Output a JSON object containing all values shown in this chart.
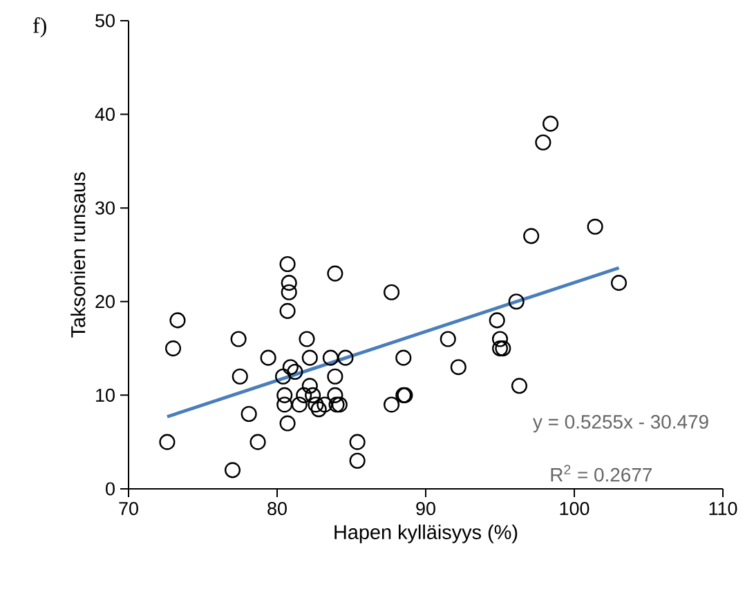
{
  "chart_data": {
    "type": "scatter",
    "xlabel": "Hapen kylläisyys (%)",
    "ylabel": "Taksonien runsaus",
    "xlim": [
      70,
      110
    ],
    "xticks": [
      70,
      80,
      90,
      100,
      110
    ],
    "ylim": [
      0,
      50
    ],
    "yticks": [
      0,
      10,
      20,
      30,
      40,
      50
    ],
    "annotations": [
      "f)",
      "y = 0.5255x - 30.479",
      "R$^{2}$ = 0.2677"
    ],
    "series": [
      {
        "marker": "circle",
        "color": "#000000",
        "x": [
          72.6,
          73,
          73.3,
          77,
          77.4,
          77.5,
          78.1,
          78.7,
          79.4,
          80.4,
          80.5,
          80.5,
          80.7,
          80.7,
          80.8,
          80.8,
          80.7,
          80.9,
          81.2,
          81.5,
          81.8,
          82,
          82.2,
          82.2,
          82.4,
          82.6,
          82.8,
          83.2,
          83.6,
          83.9,
          83.9,
          83.9,
          84,
          84.2,
          84.6,
          85.4,
          85.4,
          87.7,
          87.7,
          88.5,
          88.5,
          88.6,
          91.5,
          92.2,
          94.8,
          95,
          95,
          95.2,
          96.1,
          96.3,
          97.1,
          97.9,
          98.4,
          101.4,
          103
        ],
        "values": [
          5,
          15,
          18,
          2,
          16,
          12,
          8,
          5,
          14,
          12,
          9,
          10,
          7,
          24,
          22,
          21,
          19,
          13,
          12.5,
          9,
          10,
          16,
          14,
          11,
          10,
          9,
          8.5,
          9,
          14,
          23,
          12,
          10,
          9,
          9,
          14,
          5,
          3,
          21,
          9,
          14,
          10,
          10,
          16,
          13,
          18,
          16,
          15,
          15,
          20,
          11,
          27,
          37,
          39,
          28,
          22
        ]
      },
      {
        "type": "line",
        "color": "#4a7ebb",
        "x": [
          72.6,
          103
        ],
        "values": [
          7.7,
          23.6
        ]
      }
    ]
  }
}
